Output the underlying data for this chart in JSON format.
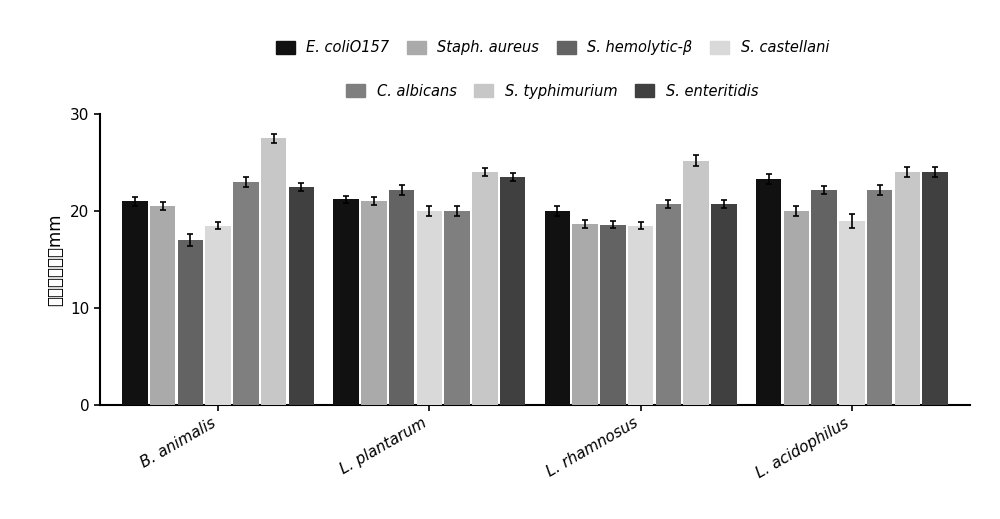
{
  "groups": [
    "B. animalis",
    "L. plantarum",
    "L. rhamnosus",
    "L. acidophilus"
  ],
  "series": [
    {
      "label": "E. coliO157",
      "color": "#111111",
      "values": [
        21.0,
        21.2,
        20.0,
        23.3
      ],
      "errors": [
        0.5,
        0.4,
        0.5,
        0.5
      ]
    },
    {
      "label": "Staph. aureus",
      "color": "#aaaaaa",
      "values": [
        20.5,
        21.0,
        18.7,
        20.0
      ],
      "errors": [
        0.4,
        0.4,
        0.4,
        0.5
      ]
    },
    {
      "label": "S. hemolytic-β",
      "color": "#636363",
      "values": [
        17.0,
        22.2,
        18.6,
        22.2
      ],
      "errors": [
        0.6,
        0.5,
        0.4,
        0.4
      ]
    },
    {
      "label": "S. castellani",
      "color": "#d9d9d9",
      "values": [
        18.5,
        20.0,
        18.5,
        19.0
      ],
      "errors": [
        0.4,
        0.5,
        0.4,
        0.7
      ]
    },
    {
      "label": "C. albicans",
      "color": "#7f7f7f",
      "values": [
        23.0,
        20.0,
        20.7,
        22.2
      ],
      "errors": [
        0.5,
        0.5,
        0.4,
        0.5
      ]
    },
    {
      "label": "S. typhimurium",
      "color": "#c7c7c7",
      "values": [
        27.5,
        24.0,
        25.2,
        24.0
      ],
      "errors": [
        0.5,
        0.4,
        0.6,
        0.5
      ]
    },
    {
      "label": "S. enteritidis",
      "color": "#404040",
      "values": [
        22.5,
        23.5,
        20.7,
        24.0
      ],
      "errors": [
        0.4,
        0.4,
        0.4,
        0.5
      ]
    }
  ],
  "ylabel": "抑菌圈直径／mm",
  "ylim": [
    0,
    30
  ],
  "yticks": [
    0,
    10,
    20,
    30
  ],
  "bar_width": 0.105,
  "group_centers": [
    0.35,
    1.15,
    1.95,
    2.75
  ],
  "background_color": "#ffffff"
}
